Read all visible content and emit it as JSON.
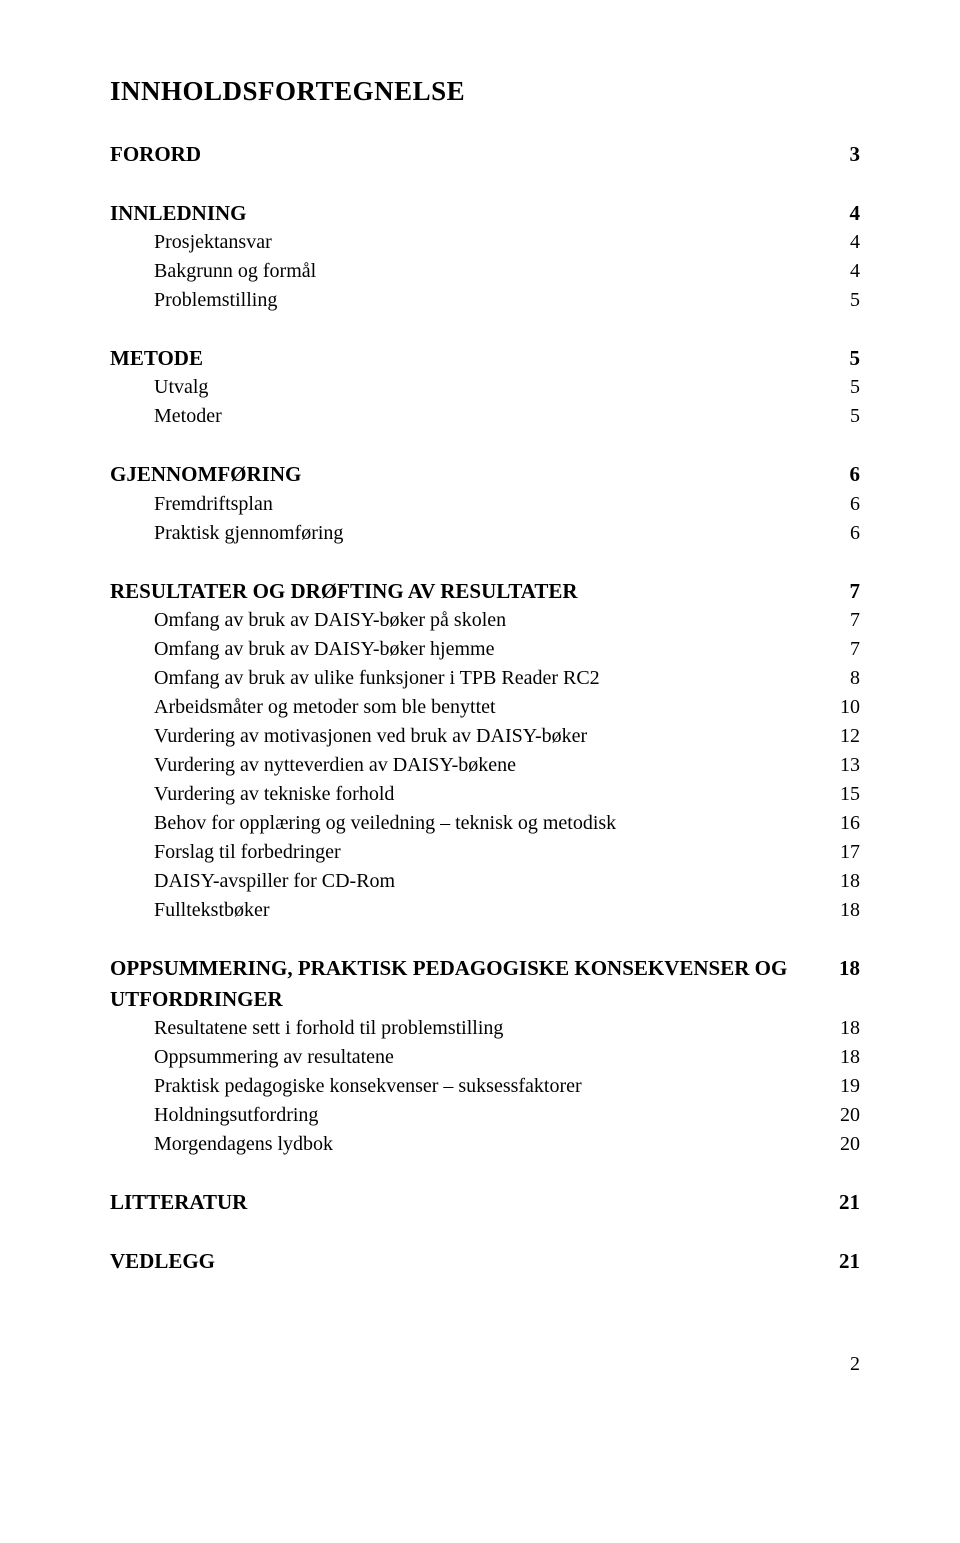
{
  "title": "INNHOLDSFORTEGNELSE",
  "sections": [
    {
      "head": {
        "label": "FORORD",
        "page": "3"
      },
      "items": []
    },
    {
      "head": {
        "label": "INNLEDNING",
        "page": "4"
      },
      "items": [
        {
          "label": "Prosjektansvar",
          "page": "4"
        },
        {
          "label": "Bakgrunn og formål",
          "page": "4"
        },
        {
          "label": "Problemstilling",
          "page": "5"
        }
      ]
    },
    {
      "head": {
        "label": "METODE",
        "page": "5"
      },
      "items": [
        {
          "label": "Utvalg",
          "page": "5"
        },
        {
          "label": "Metoder",
          "page": "5"
        }
      ]
    },
    {
      "head": {
        "label": "GJENNOMFØRING",
        "page": "6"
      },
      "items": [
        {
          "label": "Fremdriftsplan",
          "page": "6"
        },
        {
          "label": "Praktisk gjennomføring",
          "page": "6"
        }
      ]
    },
    {
      "head": {
        "label": "RESULTATER OG DRØFTING AV RESULTATER",
        "page": "7"
      },
      "items": [
        {
          "label": "Omfang av bruk av DAISY-bøker på skolen",
          "page": "7"
        },
        {
          "label": "Omfang av bruk av DAISY-bøker hjemme",
          "page": "7"
        },
        {
          "label": "Omfang av bruk av ulike funksjoner i TPB Reader RC2",
          "page": "8"
        },
        {
          "label": "Arbeidsmåter og metoder som ble benyttet",
          "page": "10"
        },
        {
          "label": "Vurdering av motivasjonen ved bruk av DAISY-bøker",
          "page": "12"
        },
        {
          "label": "Vurdering av nytteverdien av DAISY-bøkene",
          "page": "13"
        },
        {
          "label": "Vurdering av tekniske forhold",
          "page": "15"
        },
        {
          "label": "Behov for opplæring og veiledning – teknisk og metodisk",
          "page": "16"
        },
        {
          "label": "Forslag til forbedringer",
          "page": "17"
        },
        {
          "label": "DAISY-avspiller for CD-Rom",
          "page": "18"
        },
        {
          "label": "Fulltekstbøker",
          "page": "18"
        }
      ]
    },
    {
      "head": {
        "label": "OPPSUMMERING, PRAKTISK PEDAGOGISKE KONSEKVENSER OG UTFORDRINGER",
        "page": "18"
      },
      "items": [
        {
          "label": "Resultatene sett i forhold til problemstilling",
          "page": "18"
        },
        {
          "label": "Oppsummering av resultatene",
          "page": "18"
        },
        {
          "label": "Praktisk pedagogiske konsekvenser – suksessfaktorer",
          "page": "19"
        },
        {
          "label": "Holdningsutfordring",
          "page": "20"
        },
        {
          "label": "Morgendagens lydbok",
          "page": "20"
        }
      ]
    },
    {
      "head": {
        "label": "LITTERATUR",
        "page": "21"
      },
      "items": []
    },
    {
      "head": {
        "label": "VEDLEGG",
        "page": "21"
      },
      "items": []
    }
  ],
  "footer_page": "2"
}
